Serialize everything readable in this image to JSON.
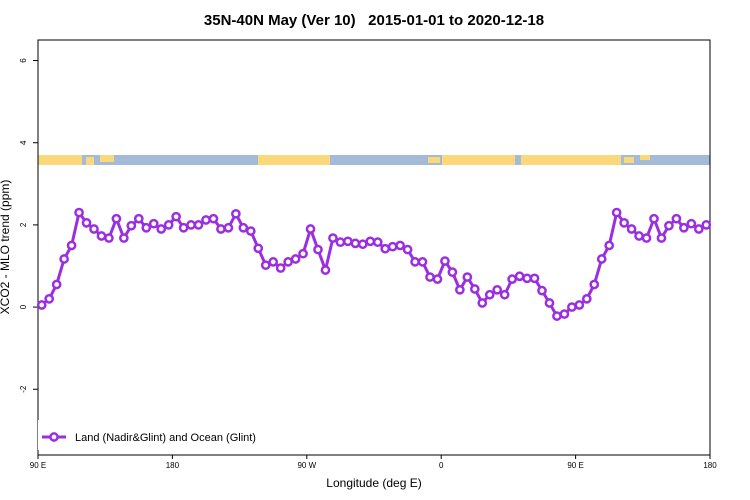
{
  "chart_data": {
    "type": "line",
    "title": "35N-40N May (Ver 10)   2015-01-01 to 2020-12-18",
    "x_label": "Longitude (deg E)",
    "y_label": "XCO2 - MLO trend (ppm)",
    "x": [
      92.5,
      97.5,
      102.5,
      107.5,
      112.5,
      117.5,
      122.5,
      127.5,
      132.5,
      137.5,
      142.5,
      147.5,
      152.5,
      157.5,
      162.5,
      167.5,
      172.5,
      177.5,
      182.5,
      187.5,
      192.5,
      197.5,
      202.5,
      207.5,
      212.5,
      217.5,
      222.5,
      227.5,
      232.5,
      237.5,
      242.5,
      247.5,
      252.5,
      257.5,
      262.5,
      267.5,
      272.5,
      277.5,
      282.5,
      287.5,
      292.5,
      297.5,
      302.5,
      307.5,
      312.5,
      317.5,
      322.5,
      327.5,
      332.5,
      337.5,
      342.5,
      347.5,
      352.5,
      357.5,
      362.5,
      367.5,
      372.5,
      377.5,
      382.5,
      387.5,
      392.5,
      397.5,
      402.5,
      407.5,
      412.5,
      417.5,
      422.5,
      427.5,
      432.5,
      437.5,
      442.5,
      447.5,
      452.5,
      457.5,
      462.5,
      467.5,
      472.5,
      477.5,
      482.5,
      487.5,
      492.5,
      497.5,
      502.5,
      507.5,
      512.5,
      517.5,
      522.5,
      527.5,
      532.5,
      537.5
    ],
    "series": [
      {
        "name": "Land (Nadir&Glint) and Ocean (Glint)",
        "color": "#9b2fe0",
        "values": [
          0.05,
          0.2,
          0.55,
          1.17,
          1.5,
          2.3,
          2.05,
          1.9,
          1.73,
          1.68,
          2.15,
          1.68,
          1.98,
          2.15,
          1.93,
          2.03,
          1.9,
          2.0,
          2.2,
          1.93,
          2.0,
          2.0,
          2.12,
          2.15,
          1.9,
          1.93,
          2.27,
          1.93,
          1.85,
          1.43,
          1.02,
          1.1,
          0.95,
          1.1,
          1.17,
          1.3,
          1.9,
          1.4,
          0.9,
          1.68,
          1.58,
          1.6,
          1.55,
          1.53,
          1.6,
          1.58,
          1.42,
          1.47,
          1.5,
          1.4,
          1.1,
          1.1,
          0.73,
          0.68,
          1.12,
          0.85,
          0.42,
          0.73,
          0.44,
          0.1,
          0.3,
          0.42,
          0.3,
          0.68,
          0.75,
          0.7,
          0.7,
          0.4,
          0.1,
          -0.22,
          -0.17,
          0.0,
          0.05,
          0.2,
          0.55,
          1.17,
          1.5,
          2.3,
          2.05,
          1.9,
          1.73,
          1.68,
          2.15,
          1.68,
          1.98,
          2.15,
          1.93,
          2.03,
          1.9,
          2.0
        ]
      }
    ],
    "xlim": [
      90,
      540
    ],
    "xticks": [
      {
        "value": 90,
        "label": "90 E"
      },
      {
        "value": 180,
        "label": "180"
      },
      {
        "value": 270,
        "label": "90 W"
      },
      {
        "value": 360,
        "label": "0"
      },
      {
        "value": 450,
        "label": "90 E"
      },
      {
        "value": 540,
        "label": "180"
      }
    ],
    "ylim": [
      -3.6,
      6.5
    ],
    "yticks": [
      -2,
      0,
      2,
      4,
      6
    ],
    "legend": "bottom-left"
  }
}
